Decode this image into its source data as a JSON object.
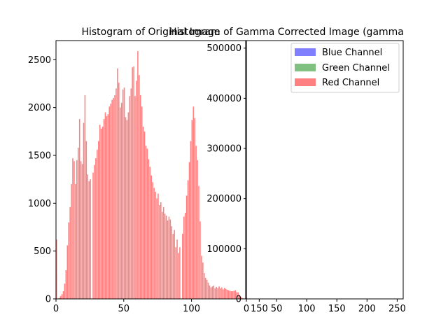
{
  "chart_data": [
    {
      "type": "bar",
      "title": "Histogram of Original Image",
      "xlim": [
        0,
        140
      ],
      "ylim": [
        0,
        2700
      ],
      "xticks": [
        "0",
        "50",
        "100",
        "150"
      ],
      "yticks": [
        "0",
        "500",
        "1000",
        "1500",
        "2000",
        "2500"
      ],
      "series": [
        {
          "name": "Red Channel",
          "color": "#ff8080",
          "x_start": 0,
          "values": [
            620,
            0,
            10,
            30,
            50,
            80,
            160,
            300,
            560,
            800,
            960,
            1200,
            1470,
            1440,
            1200,
            1450,
            1580,
            1880,
            1440,
            1410,
            1840,
            2130,
            1650,
            1300,
            1230,
            1250,
            0,
            1320,
            1400,
            1470,
            1560,
            1650,
            1820,
            1780,
            1800,
            1880,
            1950,
            1910,
            1930,
            2010,
            2040,
            2080,
            2100,
            2130,
            2200,
            2410,
            2260,
            2000,
            2050,
            2190,
            2210,
            1900,
            1870,
            1950,
            2120,
            2200,
            2420,
            2430,
            2120,
            2280,
            2590,
            2340,
            2130,
            2010,
            1800,
            1750,
            1600,
            1570,
            1460,
            1380,
            1290,
            1220,
            1160,
            1120,
            1050,
            1100,
            980,
            1010,
            910,
            960,
            890,
            870,
            820,
            860,
            830,
            760,
            680,
            720,
            540,
            620,
            480,
            540,
            0,
            680,
            860,
            900,
            1080,
            1240,
            1430,
            1650,
            1870,
            2010,
            1890,
            1600,
            1450,
            1180,
            810,
            450,
            380,
            270,
            220,
            200,
            170,
            140,
            120,
            130,
            140,
            110,
            125,
            115,
            130,
            110,
            120,
            100,
            115,
            105,
            95,
            90,
            85,
            80,
            80,
            85,
            90,
            70,
            70,
            40,
            20,
            10,
            5,
            5,
            5
          ]
        }
      ]
    },
    {
      "type": "bar",
      "title": "Histogram of Gamma Corrected Image (gamma",
      "xlim": [
        0,
        260
      ],
      "ylim": [
        0,
        515000
      ],
      "xticks": [
        "0",
        "50",
        "100",
        "150",
        "200",
        "250"
      ],
      "yticks": [
        "0",
        "100000",
        "200000",
        "300000",
        "400000",
        "500000"
      ],
      "legend_position": "upper-right",
      "series": [
        {
          "name": "Blue Channel",
          "color": "#8080ff",
          "values": [
            2000,
            0,
            0,
            0,
            0,
            0
          ]
        },
        {
          "name": "Green Channel",
          "color": "#80c080",
          "values": [
            1500,
            0,
            0,
            0,
            0,
            0
          ]
        },
        {
          "name": "Red Channel",
          "color": "#ff8080",
          "values": [
            1000,
            0,
            0,
            0,
            0,
            0
          ]
        }
      ]
    }
  ]
}
